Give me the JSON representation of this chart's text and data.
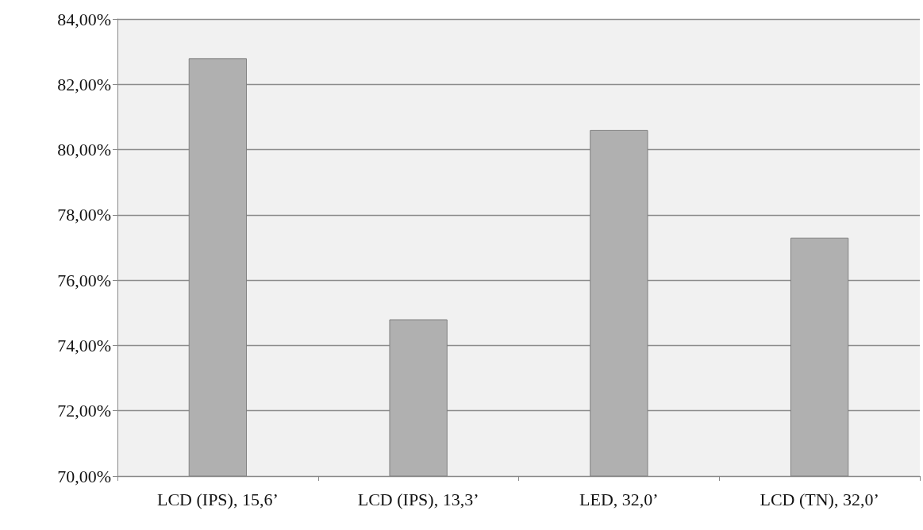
{
  "chart_data": {
    "type": "bar",
    "categories": [
      "LCD (IPS), 15,6’",
      "LCD (IPS), 13,3’",
      "LED, 32,0’",
      "LCD (TN), 32,0’"
    ],
    "values": [
      82.8,
      74.8,
      80.6,
      77.3
    ],
    "color": "#b0b0b0",
    "ylim": [
      70,
      84
    ],
    "yticks": [
      {
        "value": 70,
        "label": "70,00%"
      },
      {
        "value": 72,
        "label": "72,00%"
      },
      {
        "value": 74,
        "label": "74,00%"
      },
      {
        "value": 76,
        "label": "76,00%"
      },
      {
        "value": 78,
        "label": "78,00%"
      },
      {
        "value": 80,
        "label": "80,00%"
      },
      {
        "value": 82,
        "label": "82,00%"
      },
      {
        "value": 84,
        "label": "84,00%"
      }
    ],
    "grid": "y"
  }
}
